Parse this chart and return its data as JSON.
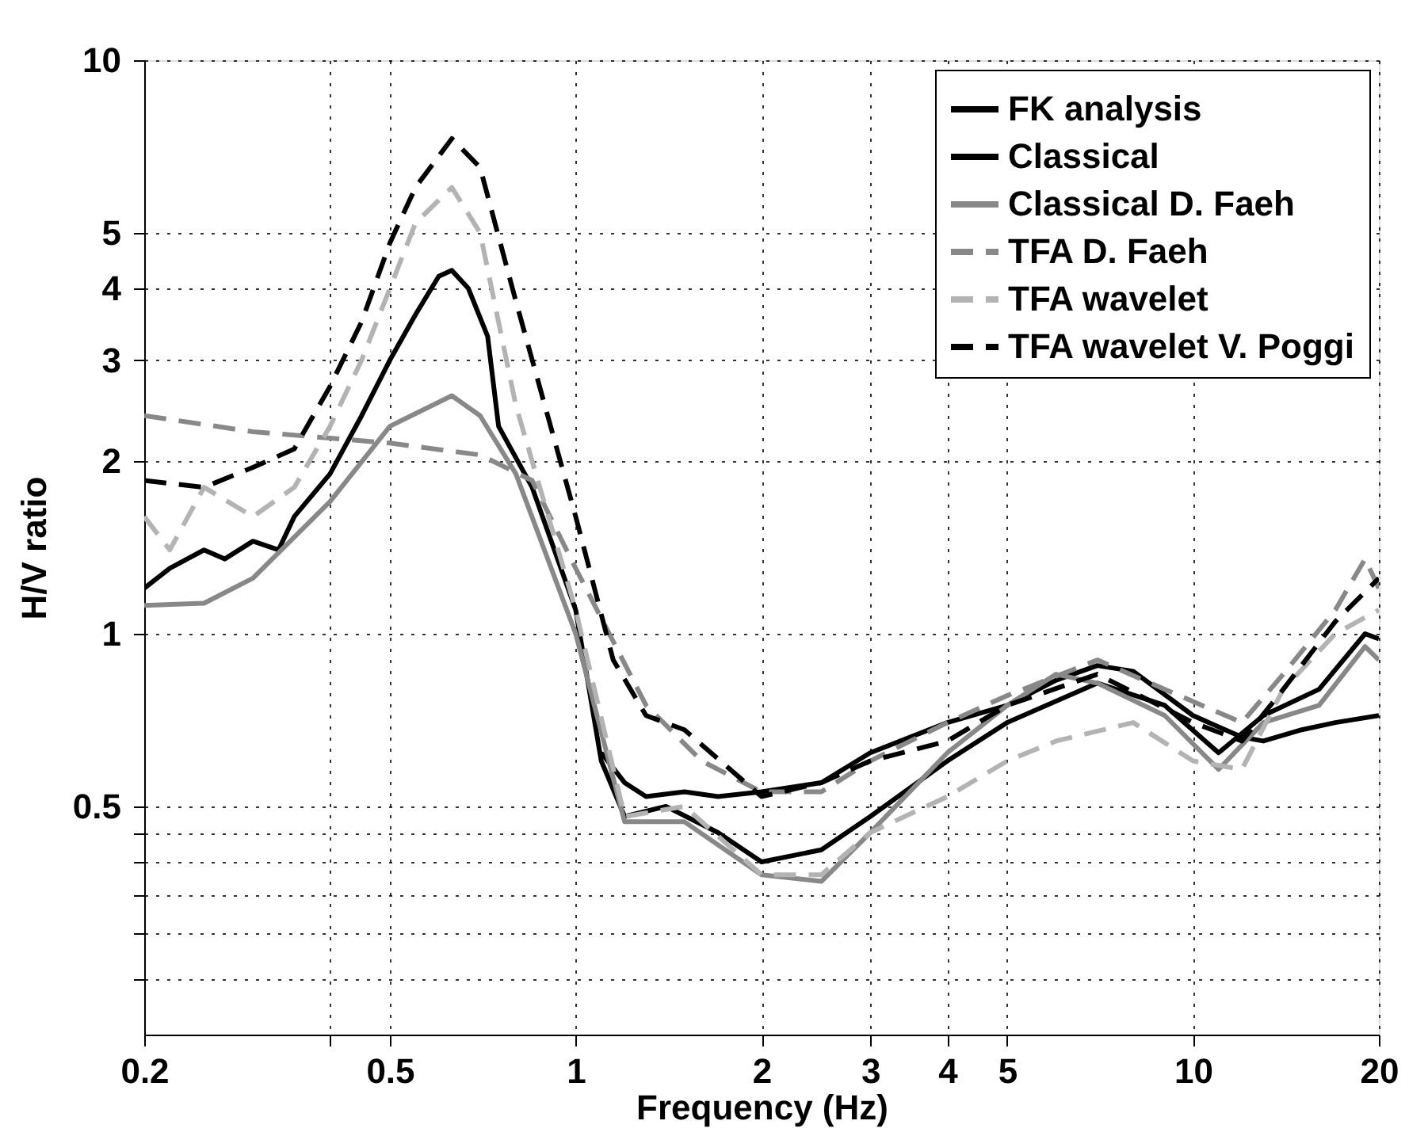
{
  "chart_data": {
    "type": "line",
    "xlabel": "Frequency (Hz)",
    "ylabel": "H/V ratio",
    "log": "xy",
    "xlim": [
      0.2,
      20
    ],
    "xticks": [
      0.2,
      {
        "value": 0.4,
        "label": null
      },
      0.5,
      1,
      2,
      3,
      4,
      5,
      10,
      20
    ],
    "ylim": [
      0.2,
      10
    ],
    "yticks": [
      {
        "value": 0.25,
        "label": null
      },
      {
        "value": 0.3,
        "label": null
      },
      {
        "value": 0.35,
        "label": null
      },
      {
        "value": 0.4,
        "label": null
      },
      {
        "value": 0.45,
        "label": null
      },
      0.5,
      1,
      2,
      3,
      4,
      5,
      10
    ],
    "grid": true,
    "legend": "top right",
    "series": [
      {
        "name": "FK analysis",
        "color": "#000000",
        "line_style": "solid",
        "x": [
          1.1,
          1.2,
          1.3,
          1.5,
          1.7,
          2,
          2.5,
          3,
          4,
          5,
          6,
          7,
          8,
          10,
          12,
          13,
          15,
          17,
          20
        ],
        "values": [
          0.62,
          0.55,
          0.52,
          0.53,
          0.52,
          0.53,
          0.55,
          0.62,
          0.7,
          0.75,
          0.83,
          0.88,
          0.86,
          0.72,
          0.66,
          0.65,
          0.68,
          0.7,
          0.72
        ]
      },
      {
        "name": "Classical",
        "color": "#000000",
        "line_style": "solid",
        "x": [
          0.2,
          0.22,
          0.25,
          0.27,
          0.3,
          0.33,
          0.35,
          0.4,
          0.45,
          0.5,
          0.55,
          0.6,
          0.63,
          0.67,
          0.72,
          0.75,
          0.85,
          1.0,
          1.1,
          1.2,
          1.4,
          1.7,
          2,
          2.5,
          3,
          4,
          5,
          7,
          9,
          11,
          13,
          16,
          19,
          20
        ],
        "values": [
          1.2,
          1.3,
          1.4,
          1.35,
          1.45,
          1.4,
          1.6,
          1.9,
          2.4,
          3.0,
          3.6,
          4.2,
          4.3,
          4.0,
          3.3,
          2.3,
          1.8,
          1.1,
          0.6,
          0.48,
          0.5,
          0.45,
          0.4,
          0.42,
          0.48,
          0.6,
          0.7,
          0.82,
          0.75,
          0.62,
          0.72,
          0.8,
          1.0,
          0.98
        ]
      },
      {
        "name": "Classical D. Faeh",
        "color": "#888888",
        "line_style": "solid",
        "x": [
          0.2,
          0.25,
          0.3,
          0.4,
          0.5,
          0.63,
          0.7,
          0.8,
          1.0,
          1.2,
          1.5,
          2,
          2.5,
          3,
          4,
          5,
          6,
          7,
          9,
          11,
          13,
          16,
          19,
          20
        ],
        "values": [
          1.12,
          1.13,
          1.25,
          1.7,
          2.3,
          2.6,
          2.4,
          1.9,
          1.0,
          0.47,
          0.47,
          0.38,
          0.37,
          0.45,
          0.62,
          0.75,
          0.85,
          0.82,
          0.72,
          0.58,
          0.7,
          0.75,
          0.95,
          0.9
        ]
      },
      {
        "name": "TFA D. Faeh",
        "color": "#888888",
        "line_style": "dashed",
        "x": [
          0.2,
          0.3,
          0.5,
          0.7,
          0.85,
          1.0,
          1.3,
          1.6,
          2,
          2.5,
          3,
          4,
          5,
          7,
          9,
          12,
          14,
          17,
          19,
          20
        ],
        "values": [
          2.4,
          2.25,
          2.15,
          2.05,
          1.85,
          1.3,
          0.75,
          0.6,
          0.53,
          0.53,
          0.6,
          0.7,
          0.78,
          0.9,
          0.8,
          0.7,
          0.85,
          1.1,
          1.35,
          1.2
        ]
      },
      {
        "name": "TFA wavelet",
        "color": "#b3b3b3",
        "line_style": "dashed",
        "x": [
          0.2,
          0.22,
          0.25,
          0.3,
          0.35,
          0.4,
          0.45,
          0.5,
          0.55,
          0.63,
          0.7,
          0.8,
          1.0,
          1.2,
          1.5,
          2,
          2.5,
          3,
          4,
          5,
          6,
          8,
          10,
          12,
          14,
          17,
          20
        ],
        "values": [
          1.6,
          1.4,
          1.8,
          1.6,
          1.8,
          2.3,
          3.0,
          4.0,
          5.2,
          6.0,
          5.0,
          2.5,
          1.1,
          0.48,
          0.5,
          0.38,
          0.38,
          0.45,
          0.52,
          0.6,
          0.65,
          0.7,
          0.6,
          0.58,
          0.8,
          1.0,
          1.1
        ]
      },
      {
        "name": "TFA wavelet V. Poggi",
        "color": "#000000",
        "line_style": "dashed",
        "x": [
          0.2,
          0.25,
          0.3,
          0.35,
          0.4,
          0.45,
          0.5,
          0.55,
          0.63,
          0.7,
          0.8,
          1.0,
          1.15,
          1.3,
          1.5,
          2,
          2.5,
          3,
          4,
          5,
          7,
          10,
          12,
          14,
          17,
          20
        ],
        "values": [
          1.85,
          1.8,
          1.95,
          2.1,
          2.7,
          3.5,
          4.8,
          6.0,
          7.3,
          6.5,
          3.8,
          1.6,
          0.9,
          0.72,
          0.68,
          0.52,
          0.55,
          0.6,
          0.65,
          0.75,
          0.85,
          0.7,
          0.65,
          0.8,
          1.05,
          1.25
        ]
      }
    ]
  }
}
